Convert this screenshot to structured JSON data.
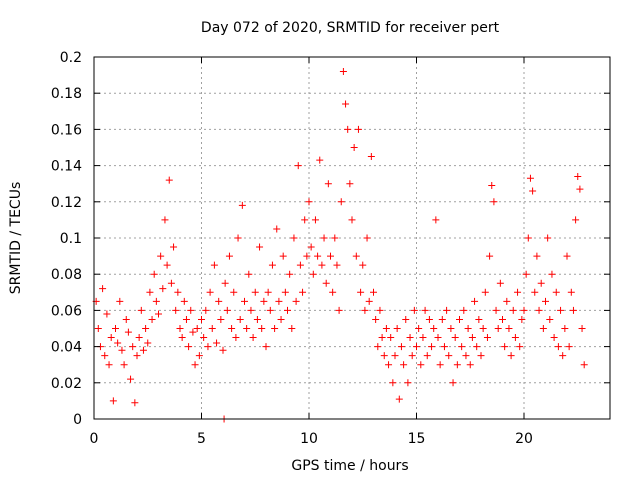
{
  "chart_data": {
    "type": "scatter",
    "title": "Day 072 of 2020, SRMTID for receiver pert",
    "xlabel": "GPS time / hours",
    "ylabel": "SRMTID / TECUs",
    "xlim": [
      0,
      24
    ],
    "ylim": [
      0,
      0.2
    ],
    "xticks": [
      0,
      5,
      10,
      15,
      20
    ],
    "yticks": [
      0,
      0.02,
      0.04,
      0.06,
      0.08,
      0.1,
      0.12,
      0.14,
      0.16,
      0.18,
      0.2
    ],
    "grid": true,
    "marker": "plus",
    "color": "#ff0000",
    "series": [
      {
        "values": [
          [
            0.1,
            0.065
          ],
          [
            0.2,
            0.05
          ],
          [
            0.3,
            0.04
          ],
          [
            0.4,
            0.072
          ],
          [
            0.5,
            0.035
          ],
          [
            0.6,
            0.058
          ],
          [
            0.7,
            0.03
          ],
          [
            0.8,
            0.045
          ],
          [
            0.9,
            0.01
          ],
          [
            1.0,
            0.05
          ],
          [
            1.1,
            0.042
          ],
          [
            1.2,
            0.065
          ],
          [
            1.3,
            0.038
          ],
          [
            1.4,
            0.03
          ],
          [
            1.5,
            0.055
          ],
          [
            1.6,
            0.048
          ],
          [
            1.7,
            0.022
          ],
          [
            1.8,
            0.04
          ],
          [
            1.9,
            0.009
          ],
          [
            2.0,
            0.035
          ],
          [
            2.1,
            0.045
          ],
          [
            2.2,
            0.06
          ],
          [
            2.3,
            0.038
          ],
          [
            2.4,
            0.05
          ],
          [
            2.5,
            0.042
          ],
          [
            2.6,
            0.07
          ],
          [
            2.7,
            0.055
          ],
          [
            2.8,
            0.08
          ],
          [
            2.9,
            0.065
          ],
          [
            3.0,
            0.058
          ],
          [
            3.1,
            0.09
          ],
          [
            3.2,
            0.072
          ],
          [
            3.3,
            0.11
          ],
          [
            3.4,
            0.085
          ],
          [
            3.5,
            0.132
          ],
          [
            3.6,
            0.075
          ],
          [
            3.7,
            0.095
          ],
          [
            3.8,
            0.06
          ],
          [
            3.9,
            0.07
          ],
          [
            4.0,
            0.05
          ],
          [
            4.1,
            0.045
          ],
          [
            4.2,
            0.065
          ],
          [
            4.3,
            0.055
          ],
          [
            4.4,
            0.04
          ],
          [
            4.5,
            0.06
          ],
          [
            4.6,
            0.048
          ],
          [
            4.7,
            0.03
          ],
          [
            4.8,
            0.05
          ],
          [
            4.9,
            0.035
          ],
          [
            5.0,
            0.055
          ],
          [
            5.1,
            0.045
          ],
          [
            5.2,
            0.06
          ],
          [
            5.3,
            0.04
          ],
          [
            5.4,
            0.07
          ],
          [
            5.5,
            0.05
          ],
          [
            5.6,
            0.085
          ],
          [
            5.7,
            0.042
          ],
          [
            5.8,
            0.065
          ],
          [
            5.9,
            0.055
          ],
          [
            6.0,
            0.038
          ],
          [
            6.1,
            0.075
          ],
          [
            6.2,
            0.06
          ],
          [
            6.3,
            0.09
          ],
          [
            6.4,
            0.05
          ],
          [
            6.5,
            0.07
          ],
          [
            6.6,
            0.045
          ],
          [
            6.7,
            0.1
          ],
          [
            6.8,
            0.055
          ],
          [
            6.9,
            0.118
          ],
          [
            7.0,
            0.065
          ],
          [
            7.1,
            0.05
          ],
          [
            7.2,
            0.08
          ],
          [
            7.3,
            0.06
          ],
          [
            7.4,
            0.045
          ],
          [
            7.5,
            0.07
          ],
          [
            7.6,
            0.055
          ],
          [
            7.7,
            0.095
          ],
          [
            7.8,
            0.05
          ],
          [
            7.9,
            0.065
          ],
          [
            8.0,
            0.04
          ],
          [
            8.1,
            0.07
          ],
          [
            8.2,
            0.06
          ],
          [
            8.3,
            0.085
          ],
          [
            8.4,
            0.05
          ],
          [
            8.5,
            0.105
          ],
          [
            8.6,
            0.065
          ],
          [
            8.7,
            0.055
          ],
          [
            8.8,
            0.09
          ],
          [
            8.9,
            0.07
          ],
          [
            9.0,
            0.06
          ],
          [
            9.1,
            0.08
          ],
          [
            9.2,
            0.05
          ],
          [
            9.3,
            0.1
          ],
          [
            9.4,
            0.065
          ],
          [
            9.5,
            0.14
          ],
          [
            9.6,
            0.085
          ],
          [
            9.7,
            0.07
          ],
          [
            9.8,
            0.11
          ],
          [
            9.9,
            0.09
          ],
          [
            10.0,
            0.12
          ],
          [
            10.1,
            0.095
          ],
          [
            10.2,
            0.08
          ],
          [
            10.3,
            0.11
          ],
          [
            10.4,
            0.09
          ],
          [
            10.5,
            0.143
          ],
          [
            10.6,
            0.085
          ],
          [
            10.7,
            0.1
          ],
          [
            10.8,
            0.075
          ],
          [
            10.9,
            0.13
          ],
          [
            11.0,
            0.09
          ],
          [
            11.1,
            0.07
          ],
          [
            11.2,
            0.1
          ],
          [
            11.3,
            0.085
          ],
          [
            11.4,
            0.06
          ],
          [
            11.5,
            0.12
          ],
          [
            11.6,
            0.192
          ],
          [
            11.7,
            0.174
          ],
          [
            11.8,
            0.16
          ],
          [
            11.9,
            0.13
          ],
          [
            12.0,
            0.11
          ],
          [
            12.1,
            0.15
          ],
          [
            12.2,
            0.09
          ],
          [
            12.3,
            0.16
          ],
          [
            12.4,
            0.07
          ],
          [
            12.5,
            0.085
          ],
          [
            12.6,
            0.06
          ],
          [
            12.7,
            0.1
          ],
          [
            12.8,
            0.065
          ],
          [
            12.9,
            0.145
          ],
          [
            13.0,
            0.07
          ],
          [
            13.1,
            0.055
          ],
          [
            13.2,
            0.04
          ],
          [
            13.3,
            0.06
          ],
          [
            13.4,
            0.045
          ],
          [
            13.5,
            0.035
          ],
          [
            13.6,
            0.05
          ],
          [
            13.7,
            0.03
          ],
          [
            13.8,
            0.045
          ],
          [
            13.9,
            0.02
          ],
          [
            14.0,
            0.035
          ],
          [
            14.1,
            0.05
          ],
          [
            14.2,
            0.011
          ],
          [
            14.3,
            0.04
          ],
          [
            14.4,
            0.03
          ],
          [
            14.5,
            0.055
          ],
          [
            14.6,
            0.02
          ],
          [
            14.7,
            0.045
          ],
          [
            14.8,
            0.035
          ],
          [
            14.9,
            0.06
          ],
          [
            15.0,
            0.04
          ],
          [
            15.1,
            0.05
          ],
          [
            15.2,
            0.03
          ],
          [
            15.3,
            0.045
          ],
          [
            15.4,
            0.06
          ],
          [
            15.5,
            0.035
          ],
          [
            15.6,
            0.055
          ],
          [
            15.7,
            0.04
          ],
          [
            15.8,
            0.05
          ],
          [
            15.9,
            0.11
          ],
          [
            16.0,
            0.045
          ],
          [
            16.1,
            0.03
          ],
          [
            16.2,
            0.055
          ],
          [
            16.3,
            0.04
          ],
          [
            16.4,
            0.06
          ],
          [
            16.5,
            0.035
          ],
          [
            16.6,
            0.05
          ],
          [
            16.7,
            0.02
          ],
          [
            16.8,
            0.045
          ],
          [
            16.9,
            0.03
          ],
          [
            17.0,
            0.055
          ],
          [
            17.1,
            0.04
          ],
          [
            17.2,
            0.06
          ],
          [
            17.3,
            0.035
          ],
          [
            17.4,
            0.05
          ],
          [
            17.5,
            0.03
          ],
          [
            17.6,
            0.045
          ],
          [
            17.7,
            0.065
          ],
          [
            17.8,
            0.04
          ],
          [
            17.9,
            0.055
          ],
          [
            18.0,
            0.035
          ],
          [
            18.1,
            0.05
          ],
          [
            18.2,
            0.07
          ],
          [
            18.3,
            0.045
          ],
          [
            18.4,
            0.09
          ],
          [
            18.5,
            0.129
          ],
          [
            18.6,
            0.12
          ],
          [
            18.7,
            0.06
          ],
          [
            18.8,
            0.05
          ],
          [
            18.9,
            0.075
          ],
          [
            19.0,
            0.055
          ],
          [
            19.1,
            0.04
          ],
          [
            19.2,
            0.065
          ],
          [
            19.3,
            0.05
          ],
          [
            19.4,
            0.035
          ],
          [
            19.5,
            0.06
          ],
          [
            19.6,
            0.045
          ],
          [
            19.7,
            0.07
          ],
          [
            19.8,
            0.04
          ],
          [
            19.9,
            0.055
          ],
          [
            20.0,
            0.06
          ],
          [
            20.1,
            0.08
          ],
          [
            20.2,
            0.1
          ],
          [
            20.3,
            0.133
          ],
          [
            20.4,
            0.126
          ],
          [
            20.5,
            0.07
          ],
          [
            20.6,
            0.09
          ],
          [
            20.7,
            0.06
          ],
          [
            20.8,
            0.075
          ],
          [
            20.9,
            0.05
          ],
          [
            21.0,
            0.065
          ],
          [
            21.1,
            0.1
          ],
          [
            21.2,
            0.055
          ],
          [
            21.3,
            0.08
          ],
          [
            21.4,
            0.045
          ],
          [
            21.5,
            0.07
          ],
          [
            21.6,
            0.04
          ],
          [
            21.7,
            0.06
          ],
          [
            21.8,
            0.035
          ],
          [
            21.9,
            0.05
          ],
          [
            22.0,
            0.09
          ],
          [
            22.1,
            0.04
          ],
          [
            22.2,
            0.07
          ],
          [
            22.3,
            0.06
          ],
          [
            22.4,
            0.11
          ],
          [
            22.5,
            0.134
          ],
          [
            22.6,
            0.127
          ],
          [
            22.7,
            0.05
          ],
          [
            22.8,
            0.03
          ],
          [
            6.05,
            0.0
          ]
        ]
      }
    ]
  }
}
